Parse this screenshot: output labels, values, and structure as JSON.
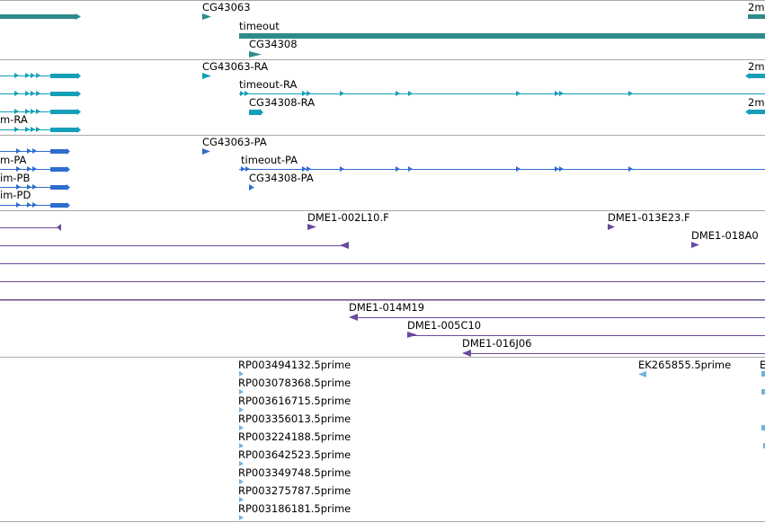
{
  "colors": {
    "gene": "#2f8a8a",
    "transcript": "#159fb8",
    "cds": "#2e6ccf",
    "clone": "#6b4a9e",
    "est": "#6fb3e0",
    "separator": "#a9a9a9"
  },
  "genes_track": {
    "labels": {
      "cg43063": "CG43063",
      "timeout": "timeout",
      "cg34308": "CG34308",
      "right_cut": "2m"
    }
  },
  "transcripts_track": {
    "labels": {
      "left_cut": "m-RA",
      "cg43063_ra": "CG43063-RA",
      "timeout_ra": "timeout-RA",
      "cg34308_ra": "CG34308-RA",
      "right_cut_1": "2m",
      "right_cut_2": "2m"
    }
  },
  "proteins_track": {
    "labels": {
      "left_pa": "m-PA",
      "left_pb": "im-PB",
      "left_pd": "im-PD",
      "cg43063_pa": "CG43063-PA",
      "timeout_pa": "timeout-PA",
      "cg34308_pa": "CG34308-PA"
    }
  },
  "clones_track_1": {
    "labels": {
      "dme1_002l10": "DME1-002L10.F",
      "dme1_013e23": "DME1-013E23.F",
      "dme1_018a0": "DME1-018A0"
    }
  },
  "clones_track_2": {
    "labels": {
      "dme1_014m19": "DME1-014M19",
      "dme1_005c10": "DME1-005C10",
      "dme1_016j06": "DME1-016J06"
    }
  },
  "est_track": {
    "items": [
      "RP003494132.5prime",
      "RP003078368.5prime",
      "RP003616715.5prime",
      "RP003356013.5prime",
      "RP003224188.5prime",
      "RP003642523.5prime",
      "RP003349748.5prime",
      "RP003275787.5prime",
      "RP003186181.5prime"
    ],
    "ek_label": "EK265855.5prime",
    "right_cut": "E"
  }
}
